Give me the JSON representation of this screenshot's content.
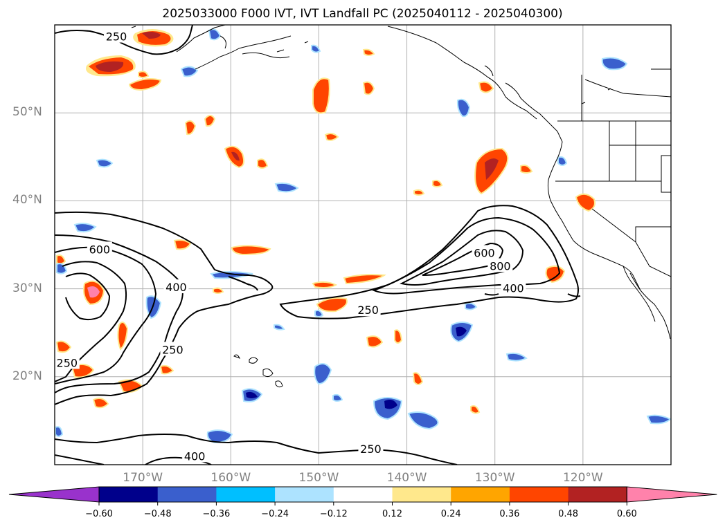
{
  "title": "2025033000 F000 IVT, IVT Landfall PC (2025040112 - 2025040300)",
  "map": {
    "projection": "equirectangular",
    "lon_range": [
      -180,
      -110
    ],
    "lat_range": [
      10,
      60
    ],
    "lat_labels": [
      {
        "lat": 50,
        "label": "50°N"
      },
      {
        "lat": 40,
        "label": "40°N"
      },
      {
        "lat": 30,
        "label": "30°N"
      },
      {
        "lat": 20,
        "label": "20°N"
      }
    ],
    "lon_labels": [
      {
        "lon": -170,
        "label": "170°W"
      },
      {
        "lon": -160,
        "label": "160°W"
      },
      {
        "lon": -150,
        "label": "150°W"
      },
      {
        "lon": -140,
        "label": "140°W"
      },
      {
        "lon": -130,
        "label": "130°W"
      },
      {
        "lon": -120,
        "label": "120°W"
      }
    ],
    "gridlines": true,
    "ivt_contours": {
      "levels": [
        250,
        400,
        600,
        800
      ],
      "labels": [
        {
          "text": "250",
          "lon": -173.0,
          "lat": 58.7
        },
        {
          "text": "600",
          "lon": -174.9,
          "lat": 34.5
        },
        {
          "text": "400",
          "lon": -166.2,
          "lat": 30.2
        },
        {
          "text": "250",
          "lon": -166.6,
          "lat": 23.1
        },
        {
          "text": "250",
          "lon": -178.6,
          "lat": 21.6
        },
        {
          "text": "400",
          "lon": -164.1,
          "lat": 11.0
        },
        {
          "text": "250",
          "lon": -144.4,
          "lat": 27.6
        },
        {
          "text": "600",
          "lon": -131.2,
          "lat": 34.1
        },
        {
          "text": "800",
          "lon": -129.4,
          "lat": 32.6
        },
        {
          "text": "400",
          "lon": -127.9,
          "lat": 30.1
        },
        {
          "text": "250",
          "lon": -144.1,
          "lat": 11.8
        }
      ]
    }
  },
  "colorbar": {
    "levels": [
      -0.6,
      -0.48,
      -0.36,
      -0.24,
      -0.12,
      0.12,
      0.24,
      0.36,
      0.48,
      0.6
    ],
    "tick_labels": [
      "−0.60",
      "−0.48",
      "−0.36",
      "−0.24",
      "−0.12",
      "0.12",
      "0.24",
      "0.36",
      "0.48",
      "0.60"
    ],
    "colors": [
      "#9932CC",
      "#00008B",
      "#3A5FCD",
      "#00BFFF",
      "#ADE3FF",
      "#FFFFFF",
      "#FFE88C",
      "#FFA500",
      "#FF4500",
      "#B22222",
      "#FF82AB"
    ],
    "extend": "both"
  }
}
